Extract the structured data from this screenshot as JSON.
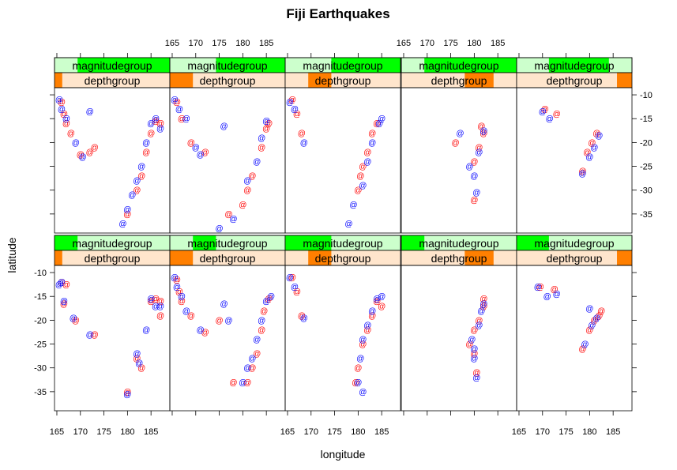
{
  "chart_data": {
    "type": "scatter",
    "title": "Fiji Earthquakes",
    "xlabel": "longitude",
    "ylabel": "latitude",
    "xlim": [
      164.5,
      189
    ],
    "ylim": [
      -39,
      -8.5
    ],
    "x_ticks": [
      165,
      170,
      175,
      180,
      185
    ],
    "y_ticks": [
      -10,
      -15,
      -20,
      -25,
      -30,
      -35
    ],
    "x_tick_labels": [
      "165",
      "170",
      "175",
      "180",
      "185"
    ],
    "y_tick_labels": [
      "-10",
      "-15",
      "-20",
      "-25",
      "-30",
      "-35"
    ],
    "point_symbol": "@",
    "series_colors": {
      "red": "#ff0000",
      "blue": "#0000ff"
    },
    "strip_colors": {
      "magnitude_fill": "#00ff00",
      "magnitude_bg": "#ccffcc",
      "depth_fill": "#ff7f00",
      "depth_bg": "#ffe5cc"
    },
    "strip_names": {
      "magnitude": "magnitudegroup",
      "depth": "depthgroup"
    },
    "panels": [
      {
        "row": "bottom",
        "col": 1,
        "magnitude_range": [
          0,
          0.2
        ],
        "depth_range": [
          0,
          0.067
        ],
        "red": [
          [
            166,
            -12
          ],
          [
            166.5,
            -16.5
          ],
          [
            167,
            -12.5
          ],
          [
            169,
            -20
          ],
          [
            173,
            -23
          ],
          [
            180,
            -35
          ],
          [
            182,
            -28
          ],
          [
            183,
            -30
          ],
          [
            185,
            -16
          ],
          [
            186,
            -15.5
          ],
          [
            187,
            -16
          ],
          [
            187,
            -19
          ]
        ],
        "blue": [
          [
            165.5,
            -12.5
          ],
          [
            166,
            -12
          ],
          [
            166.5,
            -16
          ],
          [
            168.5,
            -19.5
          ],
          [
            172,
            -23
          ],
          [
            180,
            -35.5
          ],
          [
            182,
            -27
          ],
          [
            182.5,
            -29
          ],
          [
            184,
            -22
          ],
          [
            185,
            -15.5
          ],
          [
            186,
            -17
          ],
          [
            187,
            -17
          ]
        ]
      },
      {
        "row": "bottom",
        "col": 2,
        "magnitude_range": [
          0.2,
          0.4
        ],
        "depth_range": [
          0,
          0.2
        ],
        "red": [
          [
            166,
            -11.5
          ],
          [
            166.5,
            -14
          ],
          [
            167,
            -16
          ],
          [
            169,
            -19
          ],
          [
            172,
            -22.5
          ],
          [
            175,
            -20
          ],
          [
            178,
            -33
          ],
          [
            181,
            -33
          ],
          [
            182,
            -30
          ],
          [
            183,
            -27
          ],
          [
            184,
            -22
          ],
          [
            184.5,
            -18
          ],
          [
            185.5,
            -15.5
          ]
        ],
        "blue": [
          [
            165.5,
            -11
          ],
          [
            166,
            -13
          ],
          [
            167,
            -15
          ],
          [
            168,
            -18
          ],
          [
            171,
            -22
          ],
          [
            176,
            -16.5
          ],
          [
            177,
            -20
          ],
          [
            180,
            -33
          ],
          [
            181,
            -30
          ],
          [
            182,
            -28
          ],
          [
            183,
            -24
          ],
          [
            184,
            -20
          ],
          [
            185,
            -16
          ],
          [
            186,
            -15
          ]
        ]
      },
      {
        "row": "bottom",
        "col": 3,
        "magnitude_range": [
          0,
          0.4
        ],
        "depth_range": [
          0.2,
          0.4
        ],
        "red": [
          [
            166,
            -11
          ],
          [
            167,
            -14
          ],
          [
            168,
            -19
          ],
          [
            180,
            -30
          ],
          [
            181,
            -25
          ],
          [
            182,
            -22
          ],
          [
            183,
            -19
          ],
          [
            184,
            -16
          ],
          [
            185,
            -17
          ],
          [
            179.5,
            -33
          ]
        ],
        "blue": [
          [
            165.5,
            -11
          ],
          [
            166.5,
            -13
          ],
          [
            168.5,
            -19.5
          ],
          [
            180,
            -33
          ],
          [
            180.5,
            -28
          ],
          [
            181,
            -24
          ],
          [
            182,
            -21
          ],
          [
            183,
            -18
          ],
          [
            184,
            -15.5
          ],
          [
            185,
            -15
          ],
          [
            181,
            -35
          ]
        ]
      },
      {
        "row": "bottom",
        "col": 4,
        "magnitude_range": [
          0,
          0.2
        ],
        "depth_range": [
          0.55,
          0.8
        ],
        "red": [
          [
            179,
            -25
          ],
          [
            180,
            -22
          ],
          [
            181,
            -20
          ],
          [
            182,
            -17
          ],
          [
            182,
            -15.5
          ],
          [
            180,
            -27
          ],
          [
            180.5,
            -31
          ]
        ],
        "blue": [
          [
            179.5,
            -24
          ],
          [
            180,
            -26
          ],
          [
            181,
            -21
          ],
          [
            181.5,
            -18
          ],
          [
            182,
            -16.5
          ],
          [
            180.5,
            -32
          ],
          [
            180,
            -28
          ]
        ]
      },
      {
        "row": "bottom",
        "col": 5,
        "magnitude_range": [
          0,
          0.28
        ],
        "depth_range": [
          0.87,
          1.0
        ],
        "red": [
          [
            169.5,
            -13
          ],
          [
            172.5,
            -13.5
          ],
          [
            178.5,
            -26
          ],
          [
            180,
            -22
          ],
          [
            181,
            -20
          ],
          [
            182,
            -19
          ],
          [
            182.5,
            -18
          ]
        ],
        "blue": [
          [
            169,
            -13
          ],
          [
            171,
            -15
          ],
          [
            173,
            -14.5
          ],
          [
            179,
            -25
          ],
          [
            180.5,
            -21
          ],
          [
            181.5,
            -19.5
          ],
          [
            180,
            -17.5
          ]
        ]
      },
      {
        "row": "top",
        "col": 1,
        "magnitude_range": [
          0.2,
          1.0
        ],
        "depth_range": [
          0,
          0.067
        ],
        "red": [
          [
            166,
            -11.5
          ],
          [
            166.5,
            -14
          ],
          [
            167,
            -16
          ],
          [
            168,
            -18
          ],
          [
            170,
            -22.5
          ],
          [
            172,
            -22
          ],
          [
            173,
            -21
          ],
          [
            180,
            -35
          ],
          [
            182,
            -30
          ],
          [
            183,
            -27
          ],
          [
            184,
            -22
          ],
          [
            185,
            -18
          ],
          [
            186,
            -15.5
          ],
          [
            187,
            -16
          ]
        ],
        "blue": [
          [
            165.5,
            -11
          ],
          [
            166,
            -13
          ],
          [
            167,
            -15
          ],
          [
            169,
            -20
          ],
          [
            170.5,
            -23
          ],
          [
            172,
            -13.5
          ],
          [
            179,
            -37
          ],
          [
            180,
            -34
          ],
          [
            181,
            -31
          ],
          [
            182,
            -28
          ],
          [
            183,
            -25
          ],
          [
            184,
            -20
          ],
          [
            185,
            -16
          ],
          [
            186,
            -15
          ],
          [
            187,
            -17
          ]
        ]
      },
      {
        "row": "top",
        "col": 2,
        "magnitude_range": [
          0.4,
          1.0
        ],
        "depth_range": [
          0,
          0.2
        ],
        "red": [
          [
            166,
            -11.5
          ],
          [
            167,
            -15
          ],
          [
            169,
            -20
          ],
          [
            172,
            -22
          ],
          [
            177,
            -35
          ],
          [
            180,
            -33
          ],
          [
            181,
            -30
          ],
          [
            182,
            -27
          ],
          [
            184,
            -21
          ],
          [
            185,
            -17
          ],
          [
            185.5,
            -16
          ]
        ],
        "blue": [
          [
            165.5,
            -11
          ],
          [
            166.5,
            -13
          ],
          [
            168,
            -15
          ],
          [
            170,
            -21
          ],
          [
            171,
            -22.5
          ],
          [
            176,
            -16.5
          ],
          [
            175,
            -38
          ],
          [
            178,
            -36
          ],
          [
            181,
            -28
          ],
          [
            183,
            -24
          ],
          [
            184,
            -19
          ],
          [
            185,
            -15.5
          ]
        ]
      },
      {
        "row": "top",
        "col": 3,
        "magnitude_range": [
          0.4,
          1.0
        ],
        "depth_range": [
          0.2,
          0.4
        ],
        "red": [
          [
            166,
            -11
          ],
          [
            167,
            -14
          ],
          [
            168,
            -18
          ],
          [
            180,
            -30
          ],
          [
            180.5,
            -27
          ],
          [
            181,
            -25
          ],
          [
            182,
            -22
          ],
          [
            183,
            -18
          ],
          [
            184,
            -16
          ]
        ],
        "blue": [
          [
            165.5,
            -11.5
          ],
          [
            166.5,
            -13
          ],
          [
            168.5,
            -20
          ],
          [
            178,
            -37
          ],
          [
            179,
            -33
          ],
          [
            181,
            -29
          ],
          [
            182,
            -24
          ],
          [
            183,
            -20
          ],
          [
            184.5,
            -16
          ],
          [
            185,
            -15
          ]
        ]
      },
      {
        "row": "top",
        "col": 4,
        "magnitude_range": [
          0.2,
          1.0
        ],
        "depth_range": [
          0.55,
          0.8
        ],
        "red": [
          [
            176,
            -20
          ],
          [
            180,
            -24
          ],
          [
            180,
            -32
          ],
          [
            181,
            -21
          ],
          [
            182,
            -18
          ],
          [
            181.5,
            -16.5
          ]
        ],
        "blue": [
          [
            177,
            -18
          ],
          [
            179,
            -25
          ],
          [
            180,
            -27
          ],
          [
            180.5,
            -30.5
          ],
          [
            181,
            -22
          ],
          [
            182,
            -17.5
          ]
        ]
      },
      {
        "row": "top",
        "col": 5,
        "magnitude_range": [
          0.28,
          0.8
        ],
        "depth_range": [
          0.87,
          1.0
        ],
        "red": [
          [
            170.5,
            -13
          ],
          [
            173,
            -14
          ],
          [
            179.5,
            -22
          ],
          [
            180.5,
            -20
          ],
          [
            181.5,
            -18
          ],
          [
            178.5,
            -26
          ]
        ],
        "blue": [
          [
            170,
            -13.5
          ],
          [
            171.5,
            -15
          ],
          [
            178.5,
            -26.5
          ],
          [
            180,
            -23
          ],
          [
            181,
            -21
          ],
          [
            182,
            -18.5
          ]
        ]
      }
    ]
  }
}
